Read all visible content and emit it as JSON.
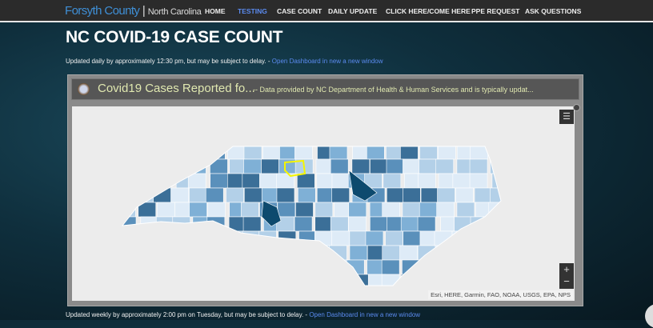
{
  "header": {
    "logo_main": "Forsyth County",
    "logo_sub": "North Carolina",
    "nav": [
      {
        "label": "HOME",
        "active": false
      },
      {
        "label": "TESTING",
        "active": true
      },
      {
        "label": "CASE COUNT",
        "active": false
      },
      {
        "label": "DAILY UPDATE",
        "active": false
      },
      {
        "label": "CLICK HERE/COME HERE",
        "active": false
      },
      {
        "label": "PPE REQUEST",
        "active": false
      },
      {
        "label": "ASK QUESTIONS",
        "active": false
      }
    ]
  },
  "page": {
    "title": "NC COVID-19 CASE COUNT",
    "update1": "Updated daily by approximately 12:30 pm, but may be subject to delay. - ",
    "link1": "Open Dashboard in new a new window",
    "update2": "Updated weekly by approximately 2:00 pm on Tuesday, but may be subject to delay. - ",
    "link2": "Open Dashboard in new a new window"
  },
  "dashboard": {
    "title": "Covid19 Cases Reported fo...",
    "description": "-- Data provided by NC Department of Health & Human Services and is typically updat...",
    "zoom_in": "+",
    "zoom_out": "−",
    "attribution": "Esri, HERE, Garmin, FAO, NOAA, USGS, EPA, NPS",
    "legend_icon": "list-icon",
    "highlighted_county": "Forsyth",
    "colors": {
      "accent": "#3f8fd6",
      "active_nav": "#5b8bf0",
      "highlight": "#f5f500",
      "choropleth": [
        "#deebf7",
        "#b3d0e8",
        "#7fb0d6",
        "#5a90bb",
        "#3b6f98",
        "#0d4a6e"
      ]
    }
  }
}
